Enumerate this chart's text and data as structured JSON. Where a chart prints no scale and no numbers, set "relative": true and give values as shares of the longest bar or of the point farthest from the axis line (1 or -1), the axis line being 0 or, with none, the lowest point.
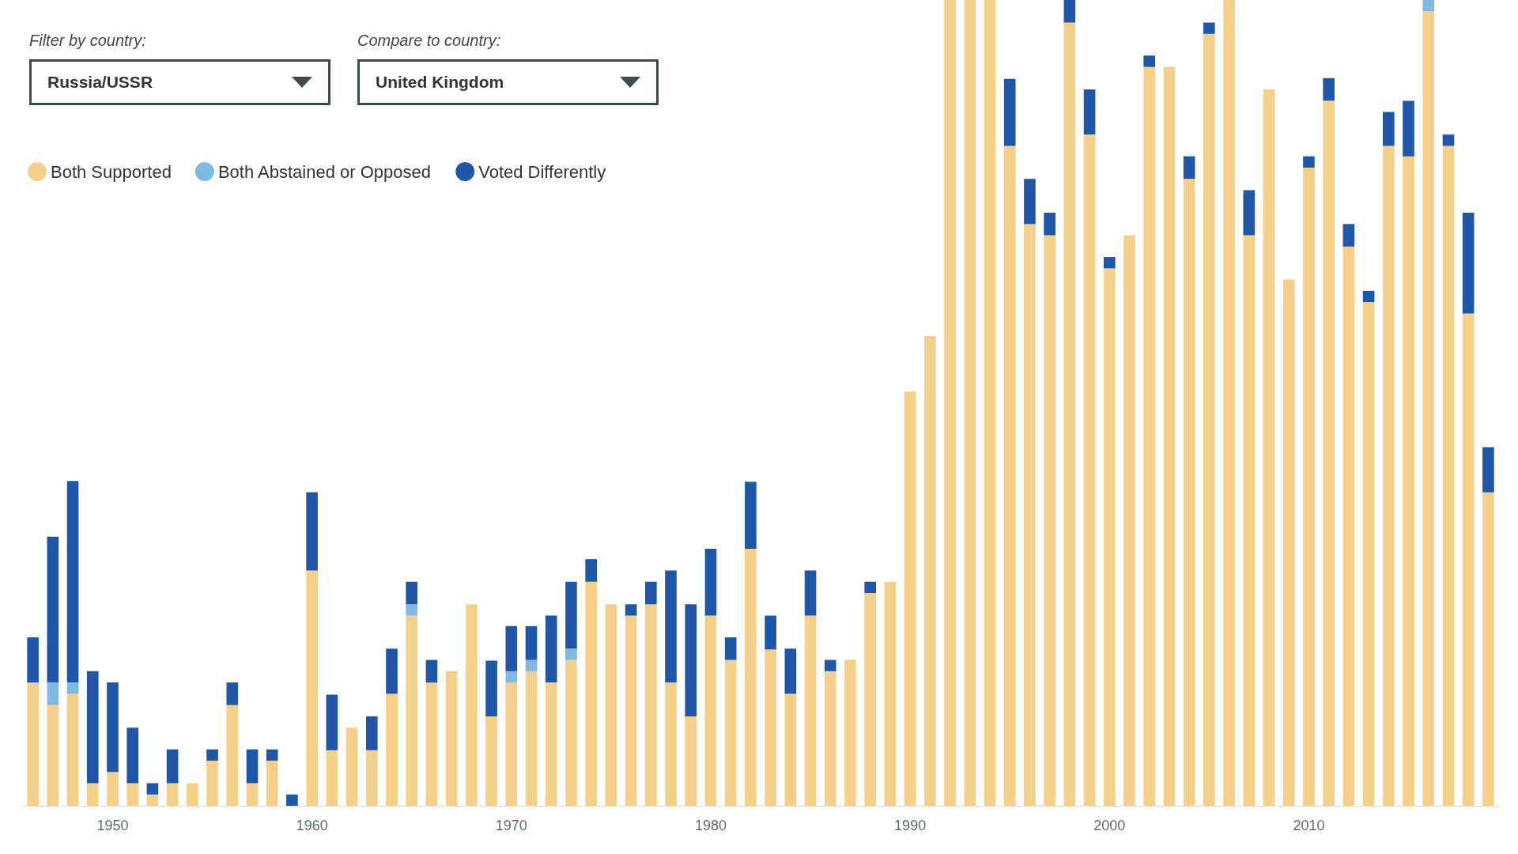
{
  "chart_data": {
    "type": "bar",
    "stacked": true,
    "relative": true,
    "legend": "top left",
    "annotations": [
      "Filter by country:",
      "Russia/USSR",
      "Compare to country:",
      "United Kingdom"
    ],
    "categories": [
      null,
      null,
      null,
      null,
      "1950",
      null,
      null,
      null,
      null,
      null,
      null,
      null,
      null,
      null,
      "1960",
      null,
      null,
      null,
      null,
      null,
      null,
      null,
      null,
      null,
      "1970",
      null,
      null,
      null,
      null,
      null,
      null,
      null,
      null,
      null,
      "1980",
      null,
      null,
      null,
      null,
      null,
      null,
      null,
      null,
      null,
      "1990",
      null,
      null,
      null,
      null,
      null,
      null,
      null,
      null,
      null,
      "2000",
      null,
      null,
      null,
      null,
      null,
      null,
      null,
      null,
      null,
      "2010",
      null,
      null,
      null,
      null,
      null,
      null,
      null,
      null,
      null
    ],
    "series": [
      {
        "name": "Both Supported",
        "color": "#f5d08a",
        "values": [
          0.153,
          0.125,
          0.139,
          0.028,
          0.042,
          0.028,
          0.014,
          0.028,
          0.028,
          0.056,
          0.125,
          0.028,
          0.056,
          0,
          0.292,
          0.069,
          0.097,
          0.069,
          0.139,
          0.236,
          0.153,
          0.167,
          0.25,
          0.111,
          0.153,
          0.167,
          0.153,
          0.181,
          0.278,
          0.25,
          0.236,
          0.25,
          0.153,
          0.111,
          0.236,
          0.181,
          0.319,
          0.194,
          0.139,
          0.236,
          0.167,
          0.181,
          0.264,
          0.278,
          0.514,
          0.583,
          1,
          1,
          1,
          0.819,
          0.722,
          0.708,
          0.972,
          0.833,
          0.667,
          0.708,
          0.917,
          0.917,
          0.778,
          0.958,
          1,
          0.708,
          0.889,
          0.653,
          0.792,
          0.875,
          0.694,
          0.625,
          0.819,
          0.806,
          0.986,
          0.819,
          0.611,
          0.389
        ]
      },
      {
        "name": "Both Abstained or Opposed",
        "color": "#7fb8e0",
        "values": [
          0,
          0.028,
          0.014,
          0,
          0,
          0,
          0,
          0,
          0,
          0,
          0,
          0,
          0,
          0,
          0,
          0,
          0,
          0,
          0,
          0.014,
          0,
          0,
          0,
          0,
          0.014,
          0.014,
          0,
          0.014,
          0,
          0,
          0,
          0,
          0,
          0,
          0,
          0,
          0,
          0,
          0,
          0,
          0,
          0,
          0,
          0,
          0,
          0,
          0,
          0,
          0,
          0,
          0,
          0,
          0,
          0,
          0,
          0,
          0,
          0,
          0,
          0,
          0,
          0,
          0,
          0,
          0,
          0,
          0,
          0,
          0,
          0,
          0.014,
          0,
          0,
          0
        ]
      },
      {
        "name": "Voted Differently",
        "color": "#1f56a8",
        "values": [
          0.056,
          0.181,
          0.25,
          0.139,
          0.111,
          0.069,
          0.014,
          0.042,
          0,
          0.014,
          0.028,
          0.042,
          0.014,
          0.014,
          0.097,
          0.069,
          0,
          0.042,
          0.056,
          0.028,
          0.028,
          0,
          0,
          0.069,
          0.056,
          0.042,
          0.083,
          0.083,
          0.028,
          0,
          0.014,
          0.028,
          0.139,
          0.139,
          0.083,
          0.028,
          0.083,
          0.042,
          0.056,
          0.056,
          0.014,
          0,
          0.014,
          0,
          0,
          0,
          0,
          0,
          0,
          0.083,
          0.056,
          0.028,
          0.028,
          0.056,
          0.014,
          0,
          0.014,
          0,
          0.028,
          0.014,
          0,
          0.056,
          0,
          0,
          0.014,
          0.028,
          0.028,
          0.014,
          0.042,
          0.069,
          0,
          0.014,
          0.125,
          0.056
        ]
      }
    ]
  }
}
